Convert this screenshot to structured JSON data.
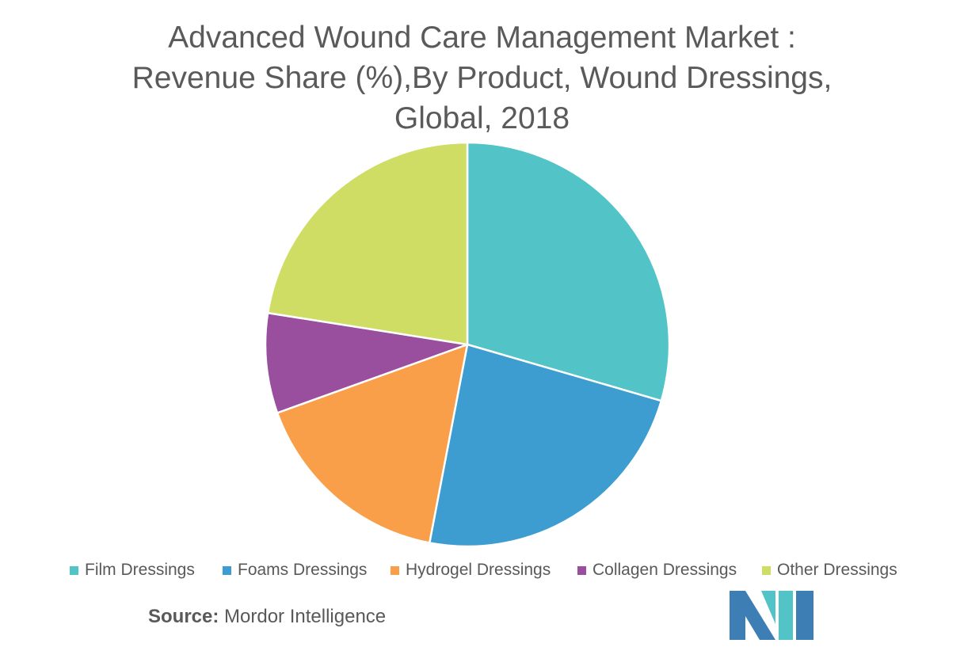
{
  "title_lines": [
    "Advanced Wound Care Management Market :",
    "Revenue Share (%),By Product, Wound Dressings,",
    "Global, 2018"
  ],
  "source": {
    "label": "Source:",
    "text": "Mordor Intelligence"
  },
  "chart_data": {
    "type": "pie",
    "title": "Advanced Wound Care Management Market : Revenue Share (%),By Product, Wound Dressings, Global, 2018",
    "legend_position": "bottom",
    "series": [
      {
        "name": "Film Dressings",
        "value": 29.5,
        "color": "#52c3c6"
      },
      {
        "name": "Foams Dressings",
        "value": 23.5,
        "color": "#3d9dd0"
      },
      {
        "name": "Hydrogel Dressings",
        "value": 16.5,
        "color": "#fa9f49"
      },
      {
        "name": "Collagen Dressings",
        "value": 8.0,
        "color": "#9a4e9e"
      },
      {
        "name": "Other Dressings",
        "value": 22.5,
        "color": "#cfdd65"
      }
    ]
  },
  "logo": {
    "colors": [
      "#3d7fb5",
      "#52c3c6"
    ]
  }
}
